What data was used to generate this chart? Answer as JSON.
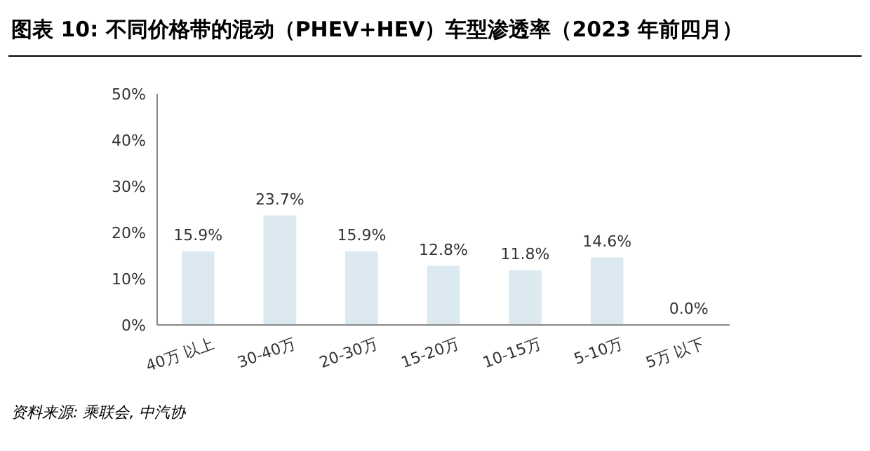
{
  "chart_data": {
    "type": "bar",
    "title": "图表 10: 不同价格带的混动（PHEV+HEV）车型渗透率（2023 年前四月）",
    "categories": [
      "40万 以上",
      "30-40万",
      "20-30万",
      "15-20万",
      "10-15万",
      "5-10万",
      "5万 以下"
    ],
    "values": [
      15.9,
      23.7,
      15.9,
      12.8,
      11.8,
      14.6,
      0.0
    ],
    "value_labels": [
      "15.9%",
      "23.7%",
      "15.9%",
      "12.8%",
      "11.8%",
      "14.6%",
      "0.0%"
    ],
    "color": "#dce9f0",
    "ylim": [
      0,
      50
    ],
    "yticks": [
      {
        "value": 0,
        "label": "0%"
      },
      {
        "value": 10,
        "label": "10%"
      },
      {
        "value": 20,
        "label": "20%"
      },
      {
        "value": 30,
        "label": "30%"
      },
      {
        "value": 40,
        "label": "40%"
      },
      {
        "value": 50,
        "label": "50%"
      }
    ],
    "annotations": [
      "资料来源: 乘联会, 中汽协"
    ]
  }
}
